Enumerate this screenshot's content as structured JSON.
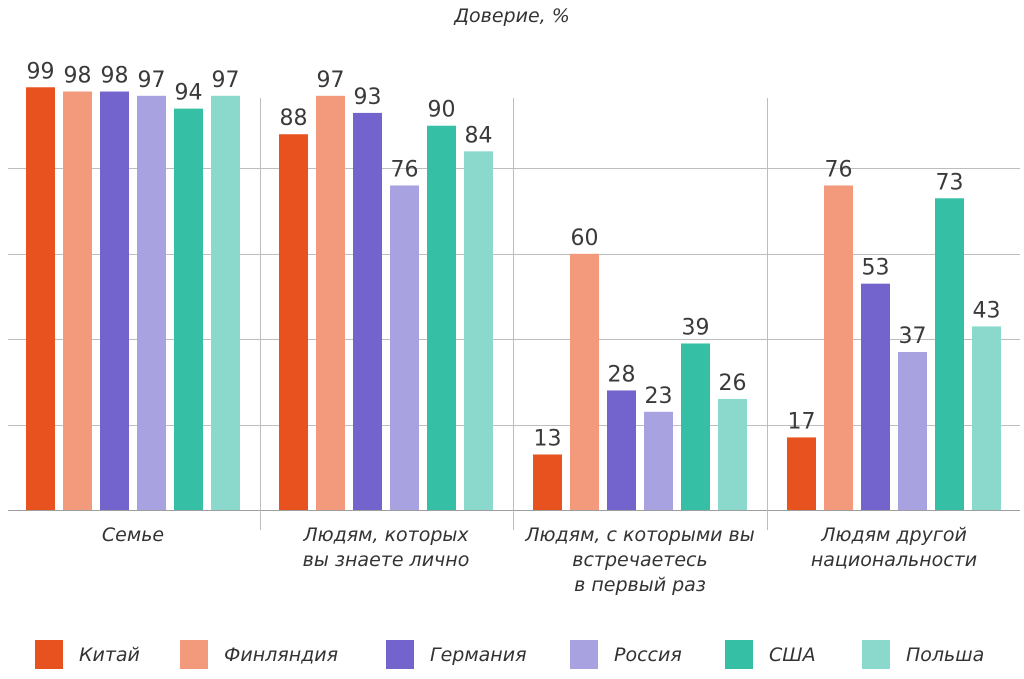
{
  "chart_data": {
    "type": "bar",
    "ylabel": "Доверие, %",
    "categories": [
      "Семье",
      "Людям, которых вы знаете лично",
      "Людям, с которыми вы встречаетесь в первый раз",
      "Людям другой национальности"
    ],
    "category_lines": [
      [
        "Семье"
      ],
      [
        "Людям, которых",
        "вы знаете лично"
      ],
      [
        "Людям, с которыми вы",
        "встречаетесь",
        "в первый раз"
      ],
      [
        "Людям другой",
        "национальности"
      ]
    ],
    "ylim": [
      0,
      100
    ],
    "grid": true,
    "legend_position": "bottom",
    "series": [
      {
        "name": "Китай",
        "color": "#E8521F",
        "values": [
          99,
          88,
          13,
          17
        ]
      },
      {
        "name": "Финляндия",
        "color": "#F29A7B",
        "values": [
          98,
          97,
          60,
          76
        ]
      },
      {
        "name": "Германия",
        "color": "#7264CC",
        "values": [
          98,
          93,
          28,
          53
        ]
      },
      {
        "name": "Россия",
        "color": "#A9A2E0",
        "values": [
          97,
          76,
          23,
          37
        ]
      },
      {
        "name": "США",
        "color": "#35BFA5",
        "values": [
          94,
          90,
          39,
          73
        ]
      },
      {
        "name": "Польша",
        "color": "#8BD8CC",
        "values": [
          97,
          84,
          26,
          43
        ]
      }
    ]
  }
}
